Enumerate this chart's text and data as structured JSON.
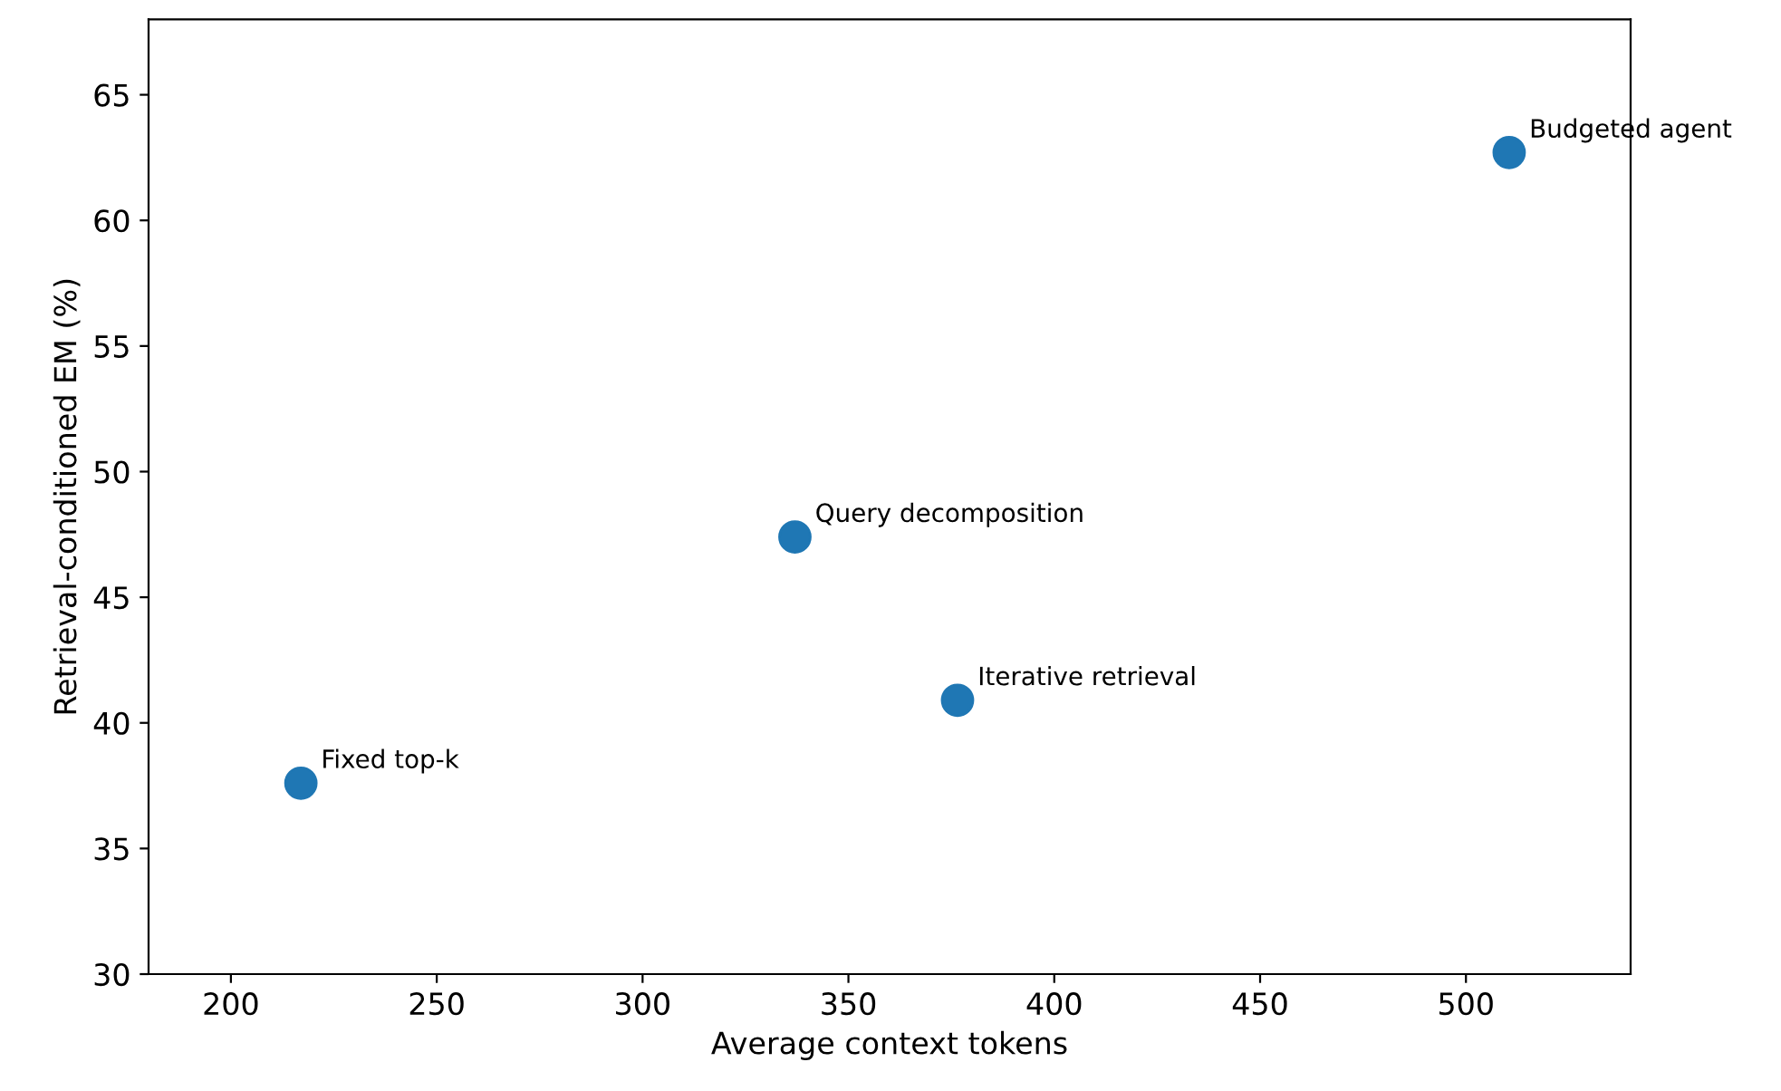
{
  "chart_data": {
    "type": "scatter",
    "xlabel": "Average context tokens",
    "ylabel": "Retrieval-conditioned EM (%)",
    "x": [
      217,
      337,
      376.5,
      510.5
    ],
    "series": [
      {
        "color": "#1f77b4",
        "values": [
          37.6,
          47.4,
          40.9,
          62.7
        ]
      }
    ],
    "annotations": [
      {
        "text": "Fixed top-k",
        "x": 217,
        "y": 37.6
      },
      {
        "text": "Query decomposition",
        "x": 337,
        "y": 47.4
      },
      {
        "text": "Iterative retrieval",
        "x": 376.5,
        "y": 40.9
      },
      {
        "text": "Budgeted agent",
        "x": 510.5,
        "y": 62.7
      }
    ],
    "xlim": [
      180,
      540
    ],
    "xticks": [
      200,
      250,
      300,
      350,
      400,
      450,
      500
    ],
    "ylim": [
      30,
      68
    ],
    "yticks": [
      30,
      35,
      40,
      45,
      50,
      55,
      60,
      65
    ],
    "grid": false,
    "legend": false,
    "marker": "circle"
  }
}
